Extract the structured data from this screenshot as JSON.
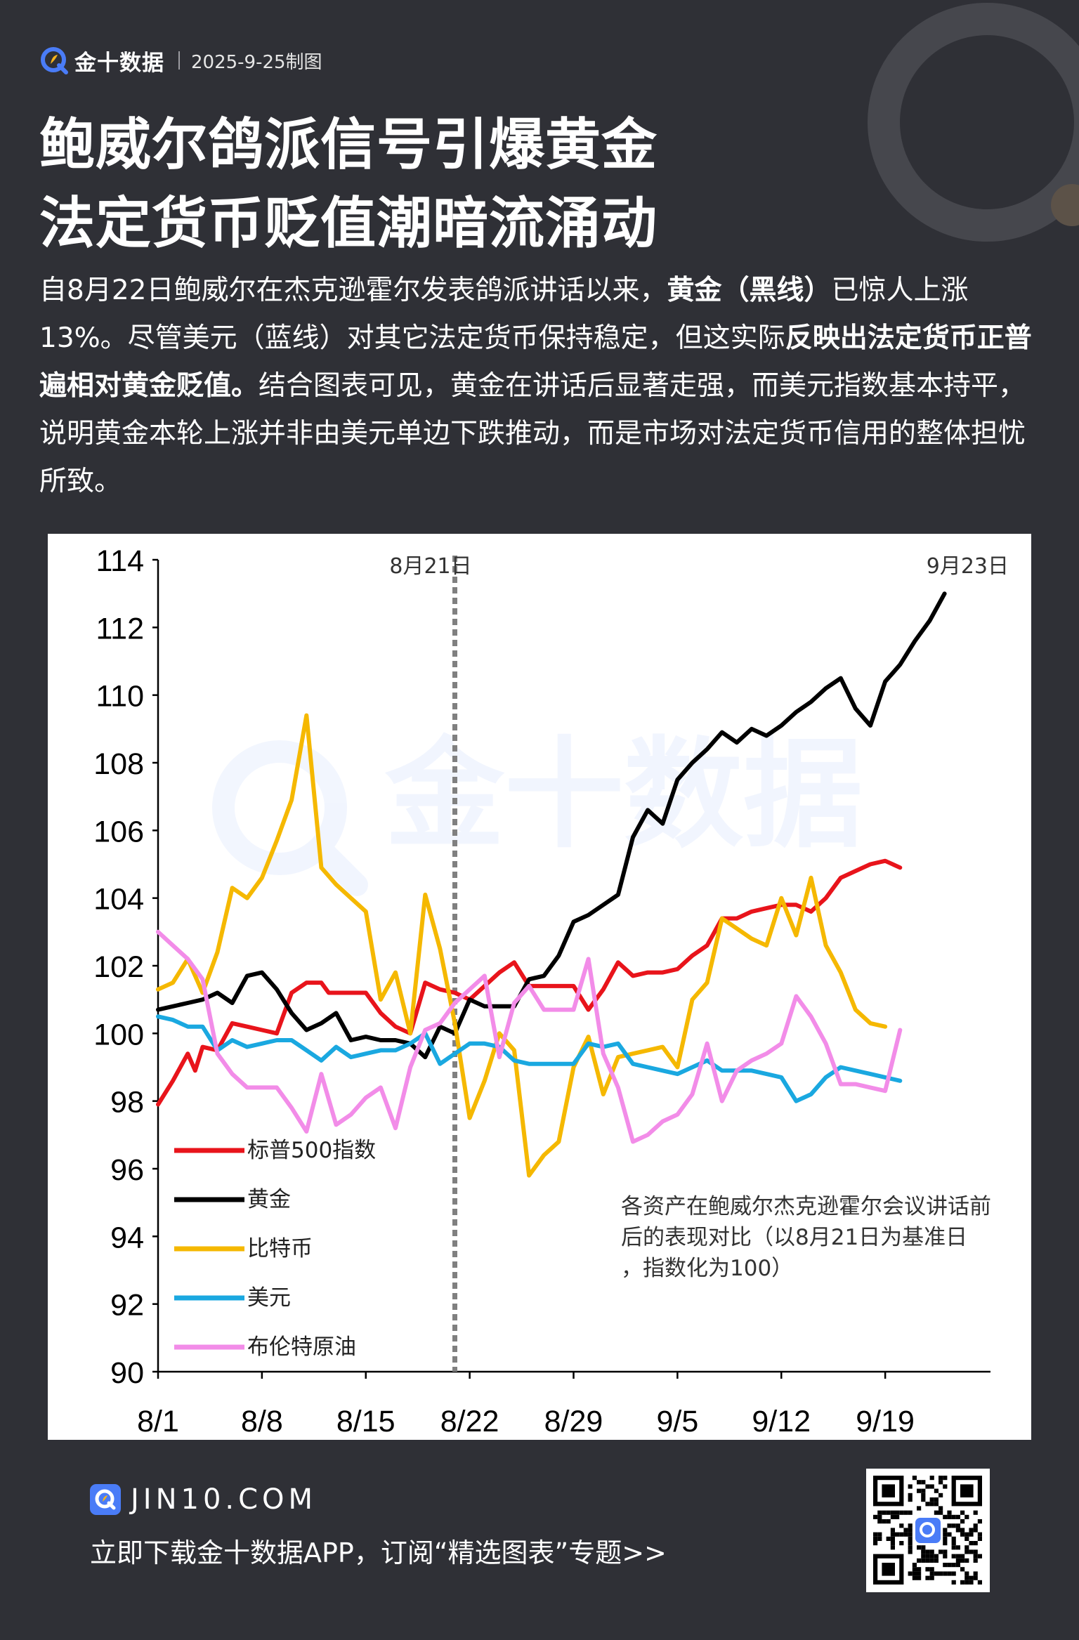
{
  "header": {
    "brand": "金十数据",
    "date": "2025-9-25制图"
  },
  "title": {
    "line1": "鲍威尔鸽派信号引爆黄金",
    "line2": "法定货币贬值潮暗流涌动"
  },
  "description": {
    "p1_a": "自8月22日鲍威尔在杰克逊霍尔发表鸽派讲话以来，",
    "p1_b": "黄金（黑线）",
    "p1_c": "已惊人上涨13%。尽管美元（蓝线）对其它法定货币保持稳定，但这实际",
    "p1_d": "反映出法定货币正普遍相对黄金贬值。",
    "p1_e": "结合图表可见，黄金在讲话后显著走强，而美元指数基本持平，说明黄金本轮上涨并非由美元单边下跌推动，而是市场对法定货币信用的整体担忧所致。"
  },
  "chart_data": {
    "type": "line",
    "x_ticks": [
      "8/1",
      "8/8",
      "8/15",
      "8/22",
      "8/29",
      "9/5",
      "9/12",
      "9/19"
    ],
    "ylim": [
      90,
      114
    ],
    "y_ticks": [
      "90",
      "92",
      "94",
      "96",
      "98",
      "100",
      "102",
      "104",
      "106",
      "108",
      "110",
      "112",
      "114"
    ],
    "grid": false,
    "legend_position": "bottom-left",
    "annotations": {
      "base_date": "8月21日",
      "end_date": "9月23日",
      "note": "各资产在鲍威尔杰克逊霍尔会议讲话前后的表现对比（以8月21日为基准日，指数化为100）"
    },
    "series": [
      {
        "name": "标普500指数",
        "color": "#e8141b",
        "points": [
          [
            0,
            97.9
          ],
          [
            1,
            98.6
          ],
          [
            2,
            99.4
          ],
          [
            2.5,
            98.9
          ],
          [
            3,
            99.6
          ],
          [
            4,
            99.5
          ],
          [
            5,
            100.3
          ],
          [
            6,
            100.2
          ],
          [
            7,
            100.1
          ],
          [
            8,
            100.0
          ],
          [
            9,
            101.2
          ],
          [
            10,
            101.5
          ],
          [
            11,
            101.5
          ],
          [
            11.5,
            101.2
          ],
          [
            13,
            101.2
          ],
          [
            14,
            101.2
          ],
          [
            15,
            100.6
          ],
          [
            16,
            100.2
          ],
          [
            17,
            100.0
          ],
          [
            18,
            101.5
          ],
          [
            19,
            101.3
          ],
          [
            20,
            101.2
          ],
          [
            21,
            101.0
          ],
          [
            22,
            101.4
          ],
          [
            23,
            101.8
          ],
          [
            24,
            102.1
          ],
          [
            25,
            101.4
          ],
          [
            26,
            101.4
          ],
          [
            27,
            101.4
          ],
          [
            28,
            101.4
          ],
          [
            29,
            100.7
          ],
          [
            30,
            101.3
          ],
          [
            31,
            102.1
          ],
          [
            32,
            101.7
          ],
          [
            33,
            101.8
          ],
          [
            34,
            101.8
          ],
          [
            35,
            101.9
          ],
          [
            36,
            102.3
          ],
          [
            37,
            102.6
          ],
          [
            38,
            103.4
          ],
          [
            39,
            103.4
          ],
          [
            40,
            103.6
          ],
          [
            41,
            103.7
          ],
          [
            42,
            103.8
          ],
          [
            43,
            103.8
          ],
          [
            44,
            103.6
          ],
          [
            45,
            104.0
          ],
          [
            46,
            104.6
          ],
          [
            47,
            104.8
          ],
          [
            48,
            105.0
          ],
          [
            49,
            105.1
          ],
          [
            50,
            104.9
          ]
        ]
      },
      {
        "name": "黄金",
        "color": "#000000",
        "points": [
          [
            0,
            100.7
          ],
          [
            1,
            100.8
          ],
          [
            2,
            100.9
          ],
          [
            3,
            101.0
          ],
          [
            4,
            101.2
          ],
          [
            5,
            100.9
          ],
          [
            6,
            101.7
          ],
          [
            7,
            101.8
          ],
          [
            8,
            101.3
          ],
          [
            9,
            100.6
          ],
          [
            10,
            100.1
          ],
          [
            11,
            100.3
          ],
          [
            12,
            100.6
          ],
          [
            13,
            99.8
          ],
          [
            14,
            99.9
          ],
          [
            15,
            99.8
          ],
          [
            16,
            99.8
          ],
          [
            17,
            99.7
          ],
          [
            18,
            99.3
          ],
          [
            19,
            100.2
          ],
          [
            20,
            100.0
          ],
          [
            21,
            101.0
          ],
          [
            22,
            100.8
          ],
          [
            23,
            100.8
          ],
          [
            24,
            100.8
          ],
          [
            25,
            101.6
          ],
          [
            26,
            101.7
          ],
          [
            27,
            102.3
          ],
          [
            28,
            103.3
          ],
          [
            29,
            103.5
          ],
          [
            30,
            103.8
          ],
          [
            31,
            104.1
          ],
          [
            32,
            105.8
          ],
          [
            33,
            106.6
          ],
          [
            34,
            106.2
          ],
          [
            35,
            107.5
          ],
          [
            36,
            108.0
          ],
          [
            37,
            108.4
          ],
          [
            38,
            108.9
          ],
          [
            39,
            108.6
          ],
          [
            40,
            109.0
          ],
          [
            41,
            108.8
          ],
          [
            42,
            109.1
          ],
          [
            43,
            109.5
          ],
          [
            44,
            109.8
          ],
          [
            45,
            110.2
          ],
          [
            46,
            110.5
          ],
          [
            47,
            109.6
          ],
          [
            48,
            109.1
          ],
          [
            49,
            110.4
          ],
          [
            50,
            110.9
          ],
          [
            51,
            111.6
          ],
          [
            52,
            112.2
          ],
          [
            53,
            113.0
          ]
        ]
      },
      {
        "name": "比特币",
        "color": "#f5b800",
        "points": [
          [
            0,
            101.3
          ],
          [
            1,
            101.5
          ],
          [
            2,
            102.2
          ],
          [
            3,
            101.2
          ],
          [
            4,
            102.4
          ],
          [
            5,
            104.3
          ],
          [
            6,
            104.0
          ],
          [
            7,
            104.6
          ],
          [
            8,
            105.7
          ],
          [
            9,
            106.9
          ],
          [
            10,
            109.4
          ],
          [
            11,
            104.9
          ],
          [
            12,
            104.4
          ],
          [
            13,
            104.0
          ],
          [
            14,
            103.6
          ],
          [
            15,
            101.0
          ],
          [
            16,
            101.8
          ],
          [
            17,
            100.0
          ],
          [
            18,
            104.1
          ],
          [
            19,
            102.5
          ],
          [
            20,
            100.3
          ],
          [
            21,
            97.5
          ],
          [
            22,
            98.6
          ],
          [
            23,
            100.0
          ],
          [
            24,
            99.5
          ],
          [
            25,
            95.8
          ],
          [
            26,
            96.4
          ],
          [
            27,
            96.8
          ],
          [
            28,
            99.0
          ],
          [
            29,
            99.9
          ],
          [
            30,
            98.2
          ],
          [
            31,
            99.3
          ],
          [
            32,
            99.4
          ],
          [
            33,
            99.5
          ],
          [
            34,
            99.6
          ],
          [
            35,
            99.0
          ],
          [
            36,
            101.0
          ],
          [
            37,
            101.5
          ],
          [
            38,
            103.4
          ],
          [
            39,
            103.1
          ],
          [
            40,
            102.8
          ],
          [
            41,
            102.6
          ],
          [
            42,
            104.0
          ],
          [
            43,
            102.9
          ],
          [
            44,
            104.6
          ],
          [
            45,
            102.6
          ],
          [
            46,
            101.8
          ],
          [
            47,
            100.7
          ],
          [
            48,
            100.3
          ],
          [
            49,
            100.2
          ]
        ]
      },
      {
        "name": "美元",
        "color": "#1aa8e0",
        "points": [
          [
            0,
            100.5
          ],
          [
            1,
            100.4
          ],
          [
            2,
            100.2
          ],
          [
            3,
            100.2
          ],
          [
            4,
            99.5
          ],
          [
            5,
            99.8
          ],
          [
            6,
            99.6
          ],
          [
            7,
            99.7
          ],
          [
            8,
            99.8
          ],
          [
            9,
            99.8
          ],
          [
            10,
            99.5
          ],
          [
            11,
            99.2
          ],
          [
            12,
            99.6
          ],
          [
            13,
            99.3
          ],
          [
            14,
            99.4
          ],
          [
            15,
            99.5
          ],
          [
            16,
            99.5
          ],
          [
            17,
            99.7
          ],
          [
            18,
            100.0
          ],
          [
            19,
            99.1
          ],
          [
            20,
            99.4
          ],
          [
            21,
            99.7
          ],
          [
            22,
            99.7
          ],
          [
            23,
            99.6
          ],
          [
            24,
            99.2
          ],
          [
            25,
            99.1
          ],
          [
            26,
            99.1
          ],
          [
            27,
            99.1
          ],
          [
            28,
            99.1
          ],
          [
            29,
            99.7
          ],
          [
            30,
            99.6
          ],
          [
            31,
            99.7
          ],
          [
            32,
            99.1
          ],
          [
            33,
            99.0
          ],
          [
            34,
            98.9
          ],
          [
            35,
            98.8
          ],
          [
            36,
            99.0
          ],
          [
            37,
            99.2
          ],
          [
            38,
            98.9
          ],
          [
            39,
            98.9
          ],
          [
            40,
            98.9
          ],
          [
            41,
            98.8
          ],
          [
            42,
            98.7
          ],
          [
            43,
            98.0
          ],
          [
            44,
            98.2
          ],
          [
            45,
            98.7
          ],
          [
            46,
            99.0
          ],
          [
            47,
            98.9
          ],
          [
            48,
            98.8
          ],
          [
            49,
            98.7
          ],
          [
            50,
            98.6
          ]
        ]
      },
      {
        "name": "布伦特原油",
        "color": "#f28ce8",
        "points": [
          [
            0,
            103.0
          ],
          [
            1,
            102.6
          ],
          [
            2,
            102.2
          ],
          [
            3,
            101.6
          ],
          [
            4,
            99.4
          ],
          [
            5,
            98.8
          ],
          [
            6,
            98.4
          ],
          [
            7,
            98.4
          ],
          [
            8,
            98.4
          ],
          [
            9,
            97.8
          ],
          [
            10,
            97.1
          ],
          [
            11,
            98.8
          ],
          [
            12,
            97.3
          ],
          [
            13,
            97.6
          ],
          [
            14,
            98.1
          ],
          [
            15,
            98.4
          ],
          [
            16,
            97.2
          ],
          [
            17,
            99.0
          ],
          [
            18,
            100.1
          ],
          [
            19,
            100.3
          ],
          [
            20,
            100.9
          ],
          [
            21,
            101.3
          ],
          [
            22,
            101.7
          ],
          [
            23,
            99.3
          ],
          [
            24,
            100.9
          ],
          [
            25,
            101.4
          ],
          [
            26,
            100.7
          ],
          [
            27,
            100.7
          ],
          [
            28,
            100.7
          ],
          [
            29,
            102.2
          ],
          [
            30,
            99.4
          ],
          [
            31,
            98.4
          ],
          [
            32,
            96.8
          ],
          [
            33,
            97.0
          ],
          [
            34,
            97.4
          ],
          [
            35,
            97.6
          ],
          [
            36,
            98.2
          ],
          [
            37,
            99.7
          ],
          [
            38,
            98.0
          ],
          [
            39,
            98.9
          ],
          [
            40,
            99.2
          ],
          [
            41,
            99.4
          ],
          [
            42,
            99.7
          ],
          [
            43,
            101.1
          ],
          [
            44,
            100.5
          ],
          [
            45,
            99.7
          ],
          [
            46,
            98.5
          ],
          [
            47,
            98.5
          ],
          [
            48,
            98.4
          ],
          [
            49,
            98.3
          ],
          [
            50,
            100.1
          ]
        ]
      }
    ]
  },
  "footer": {
    "url": "JIN10.COM",
    "cta": "立即下载金十数据APP，订阅“精选图表”专题>>"
  }
}
